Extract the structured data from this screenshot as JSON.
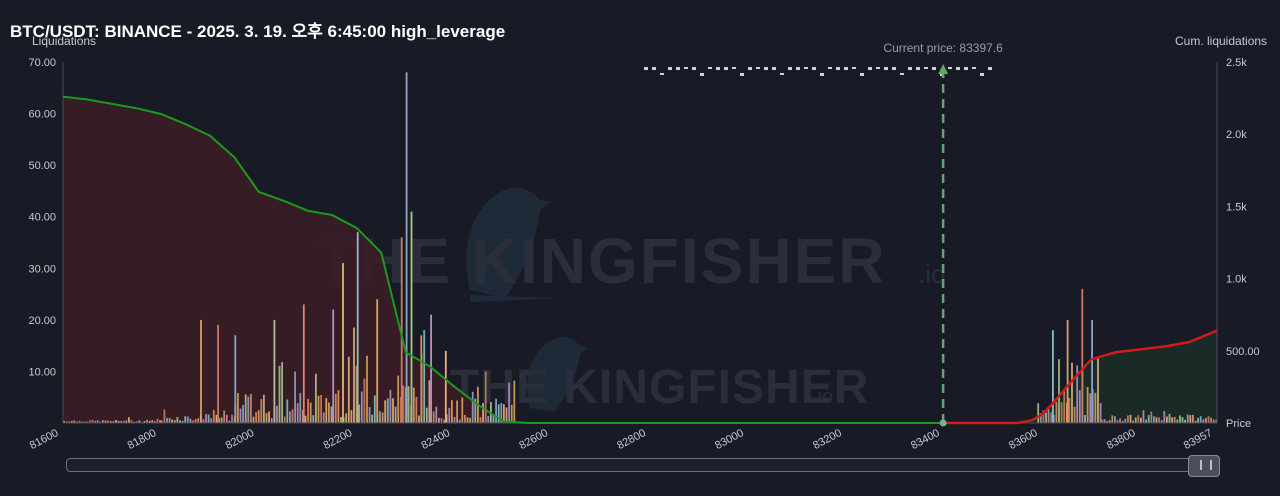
{
  "header": {
    "title": "BTC/USDT: BINANCE - 2025. 3. 19. 오후 6:45:00 high_leverage"
  },
  "watermark": {
    "main": "THE KINGFISHER",
    "suffix": ".io"
  },
  "controls": {
    "range_scrollbar": "range-scrollbar"
  },
  "colors": {
    "background": "#181a25",
    "cum_short": "#1d9a1d",
    "cum_long": "#d11a1a",
    "current_price_line": "#5fa86a",
    "fill_left": "#3a1d26",
    "fill_right": "#1b2e28"
  },
  "chart_data": {
    "type": "bar",
    "x_axis": {
      "ticks": [
        "81600",
        "81800",
        "82000",
        "82200",
        "82400",
        "82600",
        "82800",
        "83000",
        "83200",
        "83400",
        "83600",
        "83800",
        "83957"
      ],
      "range": [
        81600,
        83957
      ]
    },
    "y_left": {
      "label": "Liquidations",
      "ticks": [
        "70.00",
        "60.00",
        "50.00",
        "40.00",
        "30.00",
        "20.00",
        "10.00"
      ],
      "range": [
        0,
        70
      ]
    },
    "y_right": {
      "label": "Cum. liquidations",
      "ticks": [
        "2.5k",
        "2.0k",
        "1.5k",
        "1.0k",
        "500.00",
        "Price"
      ],
      "range": [
        0,
        2500
      ]
    },
    "current_price": {
      "label": "Current price: 83397.6",
      "value": 83397.6
    },
    "cumulative_left": {
      "x": [
        81600,
        81650,
        81700,
        81750,
        81800,
        81850,
        81900,
        81950,
        82000,
        82050,
        82100,
        82150,
        82200,
        82250,
        82300,
        82350,
        82400,
        82450,
        82500,
        82550,
        82600
      ],
      "y": [
        2260,
        2240,
        2210,
        2180,
        2140,
        2070,
        1990,
        1840,
        1600,
        1540,
        1470,
        1440,
        1350,
        1180,
        490,
        390,
        250,
        120,
        10,
        0,
        0
      ]
    },
    "cumulative_right": {
      "x": [
        83400,
        83550,
        83580,
        83600,
        83620,
        83650,
        83700,
        83750,
        83800,
        83850,
        83900,
        83957
      ],
      "y": [
        0,
        0,
        20,
        60,
        130,
        250,
        440,
        490,
        510,
        530,
        560,
        640
      ]
    },
    "bar_spikes": {
      "x": [
        81880,
        81915,
        81950,
        82030,
        82090,
        82150,
        82170,
        82200,
        82240,
        82290,
        82300,
        82310,
        82330,
        82350,
        82380,
        83620,
        83650,
        83680,
        83700
      ],
      "y": [
        20,
        19,
        17,
        20,
        23,
        22,
        31,
        37,
        24,
        36,
        68,
        41,
        17,
        21,
        14,
        18,
        20,
        26,
        20
      ]
    }
  }
}
